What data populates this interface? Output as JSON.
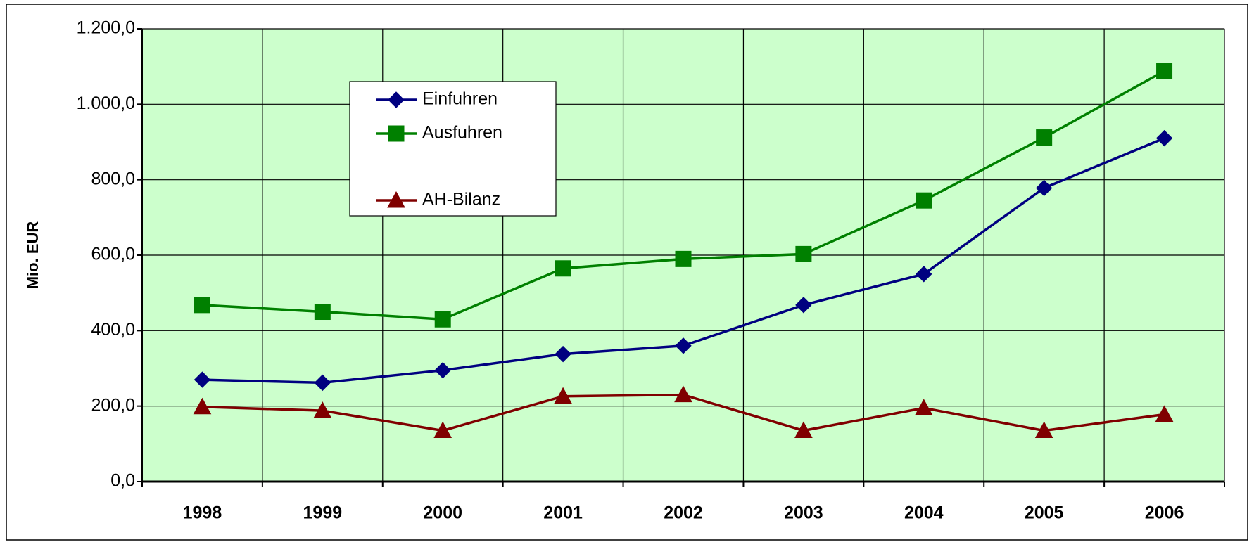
{
  "chart_data": {
    "type": "line",
    "y_label": "Mio. EUR",
    "categories": [
      "1998",
      "1999",
      "2000",
      "2001",
      "2002",
      "2003",
      "2004",
      "2005",
      "2006"
    ],
    "series": [
      {
        "name": "Einfuhren",
        "color": "#000080",
        "marker": "diamond",
        "values": [
          270,
          262,
          295,
          338,
          360,
          468,
          550,
          778,
          910
        ]
      },
      {
        "name": "Ausfuhren",
        "color": "#008000",
        "marker": "square",
        "values": [
          468,
          450,
          430,
          565,
          590,
          603,
          745,
          912,
          1088
        ]
      },
      {
        "name": "AH-Bilanz",
        "color": "#800000",
        "marker": "triangle",
        "values": [
          198,
          188,
          135,
          226,
          230,
          135,
          195,
          135,
          178
        ]
      }
    ],
    "ylim": [
      0,
      1200
    ],
    "yticks": [
      {
        "value": 0,
        "label": "0,0"
      },
      {
        "value": 200,
        "label": "200,0"
      },
      {
        "value": 400,
        "label": "400,0"
      },
      {
        "value": 600,
        "label": "600,0"
      },
      {
        "value": 800,
        "label": "800,0"
      },
      {
        "value": 1000,
        "label": "1.000,0"
      },
      {
        "value": 1200,
        "label": "1.200,0"
      }
    ],
    "grid": true,
    "plot_background": "#ccffcc",
    "legend": "upper left"
  }
}
